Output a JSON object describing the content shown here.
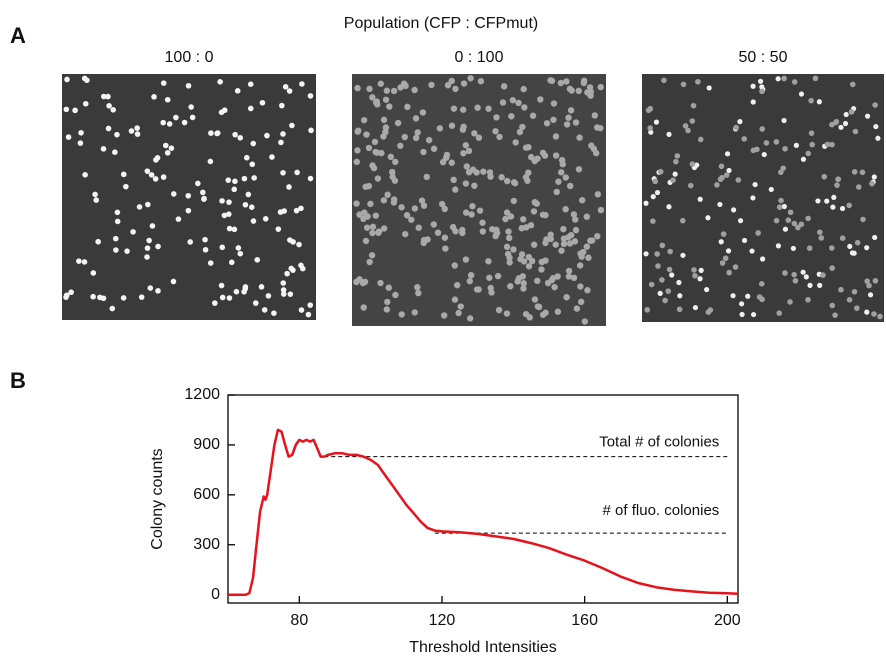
{
  "figure": {
    "panel_a_label": "A",
    "panel_b_label": "B",
    "population_title": "Population (CFP : CFPmut)",
    "images": [
      {
        "label": "100 : 0"
      },
      {
        "label": "0 : 100"
      },
      {
        "label": "50 : 50"
      }
    ]
  },
  "chart_data": {
    "type": "line",
    "color": "#e8121a",
    "xlabel": "Threshold Intensities",
    "ylabel": "Colony counts",
    "xlim": [
      60,
      203
    ],
    "ylim": [
      -50,
      1200
    ],
    "xticks": [
      80,
      120,
      160,
      200
    ],
    "yticks": [
      0,
      300,
      600,
      900,
      1200
    ],
    "x": [
      60,
      65,
      66,
      67,
      68,
      69,
      70,
      70.5,
      71,
      72,
      73,
      74,
      75,
      76,
      77,
      78,
      79,
      80,
      81,
      82,
      83,
      84,
      85,
      86,
      87,
      88,
      90,
      92,
      94,
      96,
      98,
      100,
      102,
      104,
      106,
      108,
      110,
      112,
      114,
      116,
      118,
      120,
      125,
      130,
      135,
      140,
      145,
      150,
      155,
      160,
      165,
      170,
      175,
      180,
      185,
      190,
      195,
      200,
      203
    ],
    "values": [
      0,
      0,
      10,
      100,
      300,
      500,
      590,
      570,
      600,
      750,
      900,
      990,
      980,
      900,
      830,
      840,
      900,
      930,
      920,
      930,
      920,
      930,
      880,
      830,
      830,
      840,
      850,
      850,
      840,
      840,
      830,
      810,
      780,
      720,
      660,
      600,
      540,
      490,
      440,
      400,
      385,
      380,
      375,
      365,
      350,
      335,
      310,
      280,
      240,
      205,
      160,
      110,
      70,
      45,
      30,
      20,
      12,
      8,
      5
    ],
    "reference_lines": [
      {
        "label": "Total # of colonies",
        "value": 830,
        "x": [
          87,
          200
        ]
      },
      {
        "label": "# of fluo. colonies",
        "value": 370,
        "x": [
          118,
          200
        ]
      }
    ]
  }
}
